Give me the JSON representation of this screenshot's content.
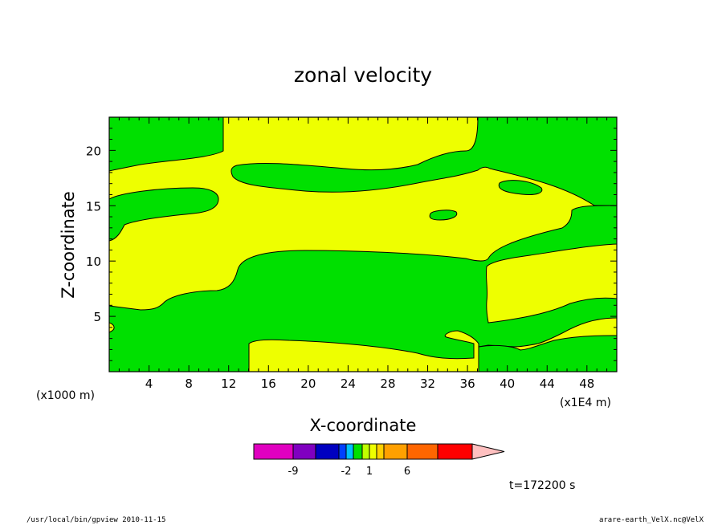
{
  "chart_data": {
    "type": "heatmap",
    "title": "zonal velocity",
    "xlabel": "X-coordinate",
    "ylabel": "Z-coordinate",
    "x_scale_label": "(x1E4 m)",
    "y_scale_label": "(x1000 m)",
    "xlim": [
      0,
      51
    ],
    "ylim": [
      0,
      23
    ],
    "x_ticks": [
      4,
      8,
      12,
      16,
      20,
      24,
      28,
      32,
      36,
      40,
      44,
      48
    ],
    "y_ticks": [
      5,
      10,
      15,
      20
    ],
    "regions": [
      {
        "name": "yellow",
        "color": "#eeff00",
        "value_range": [
          1,
          2.5
        ]
      },
      {
        "name": "green",
        "color": "#00e000",
        "value_range": [
          -1,
          1
        ]
      }
    ],
    "colorbar": {
      "colors": [
        "#e000c0",
        "#8000c0",
        "#0000c0",
        "#0040ff",
        "#00c0ff",
        "#00e000",
        "#c0ff00",
        "#eeff00",
        "#ffd000",
        "#ffa000",
        "#ff6600",
        "#ff0000",
        "#ff8080",
        "#ffc0c0"
      ],
      "tick_labels": [
        "-9",
        "-2",
        "1",
        "6"
      ]
    },
    "time_label": "t=172200 s"
  },
  "footer": {
    "left": "/usr/local/bin/gpview  2010-11-15",
    "right": "arare-earth_VelX.nc@VelX"
  }
}
